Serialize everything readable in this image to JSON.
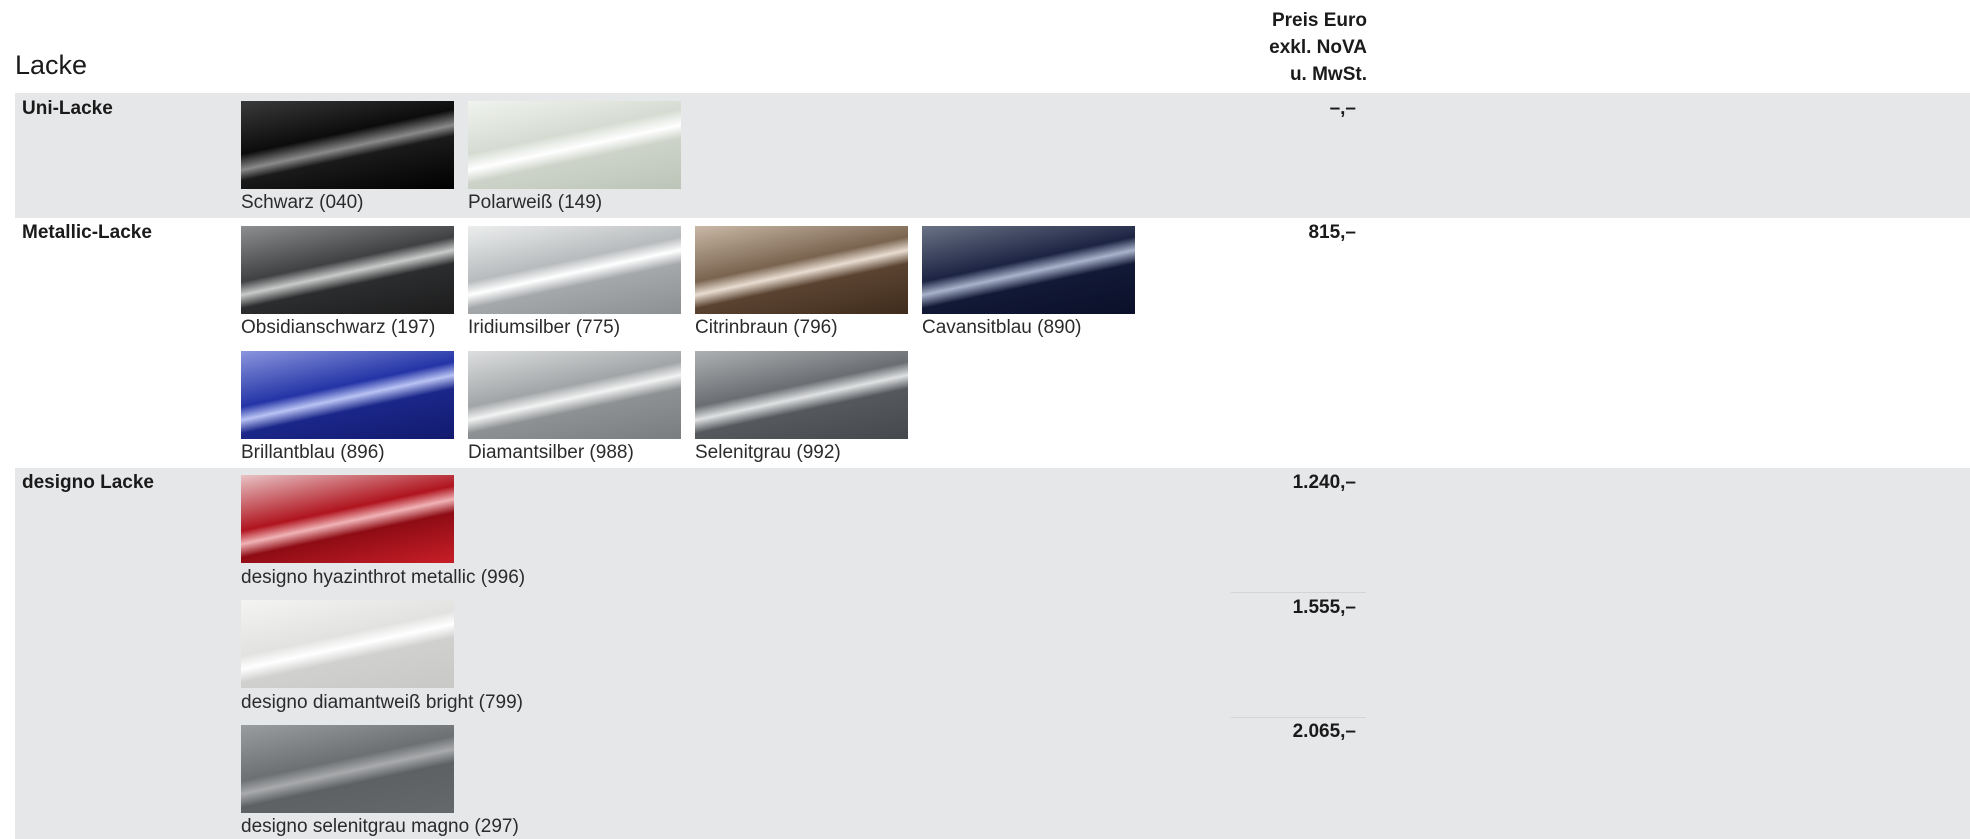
{
  "title": "Lacke",
  "price_header": {
    "line1": "Preis Euro",
    "line2": "exkl. NoVA",
    "line3": "u. MwSt."
  },
  "sections": {
    "uni": {
      "label": "Uni-Lacke",
      "price": "–,–",
      "items": [
        {
          "name": "Schwarz (040)",
          "color": "#0c0c0c"
        },
        {
          "name": "Polarweiß (149)",
          "color": "#d6dcd2"
        }
      ]
    },
    "metallic": {
      "label": "Metallic-Lacke",
      "price": "815,–",
      "items": [
        {
          "name": "Obsidianschwarz (197)",
          "color": "#3f4142"
        },
        {
          "name": "Iridiumsilber (775)",
          "color": "#b8bbbd"
        },
        {
          "name": "Citrinbraun (796)",
          "color": "#7a6450"
        },
        {
          "name": "Cavansitblau (890)",
          "color": "#1c2443"
        },
        {
          "name": "Brillantblau (896)",
          "color": "#2434a6"
        },
        {
          "name": "Diamantsilber (988)",
          "color": "#a2a5a7"
        },
        {
          "name": "Selenitgrau (992)",
          "color": "#6a6e72"
        }
      ]
    },
    "designo": {
      "label": "designo Lacke",
      "items": [
        {
          "name": "designo hyazinthrot metallic (996)",
          "price": "1.240,–",
          "color": "#b0141e"
        },
        {
          "name": "designo diamantweiß bright (799)",
          "price": "1.555,–",
          "color": "#e2e3e1"
        },
        {
          "name": "designo selenitgrau magno (297)",
          "price": "2.065,–",
          "color": "#6d7073"
        }
      ]
    }
  }
}
